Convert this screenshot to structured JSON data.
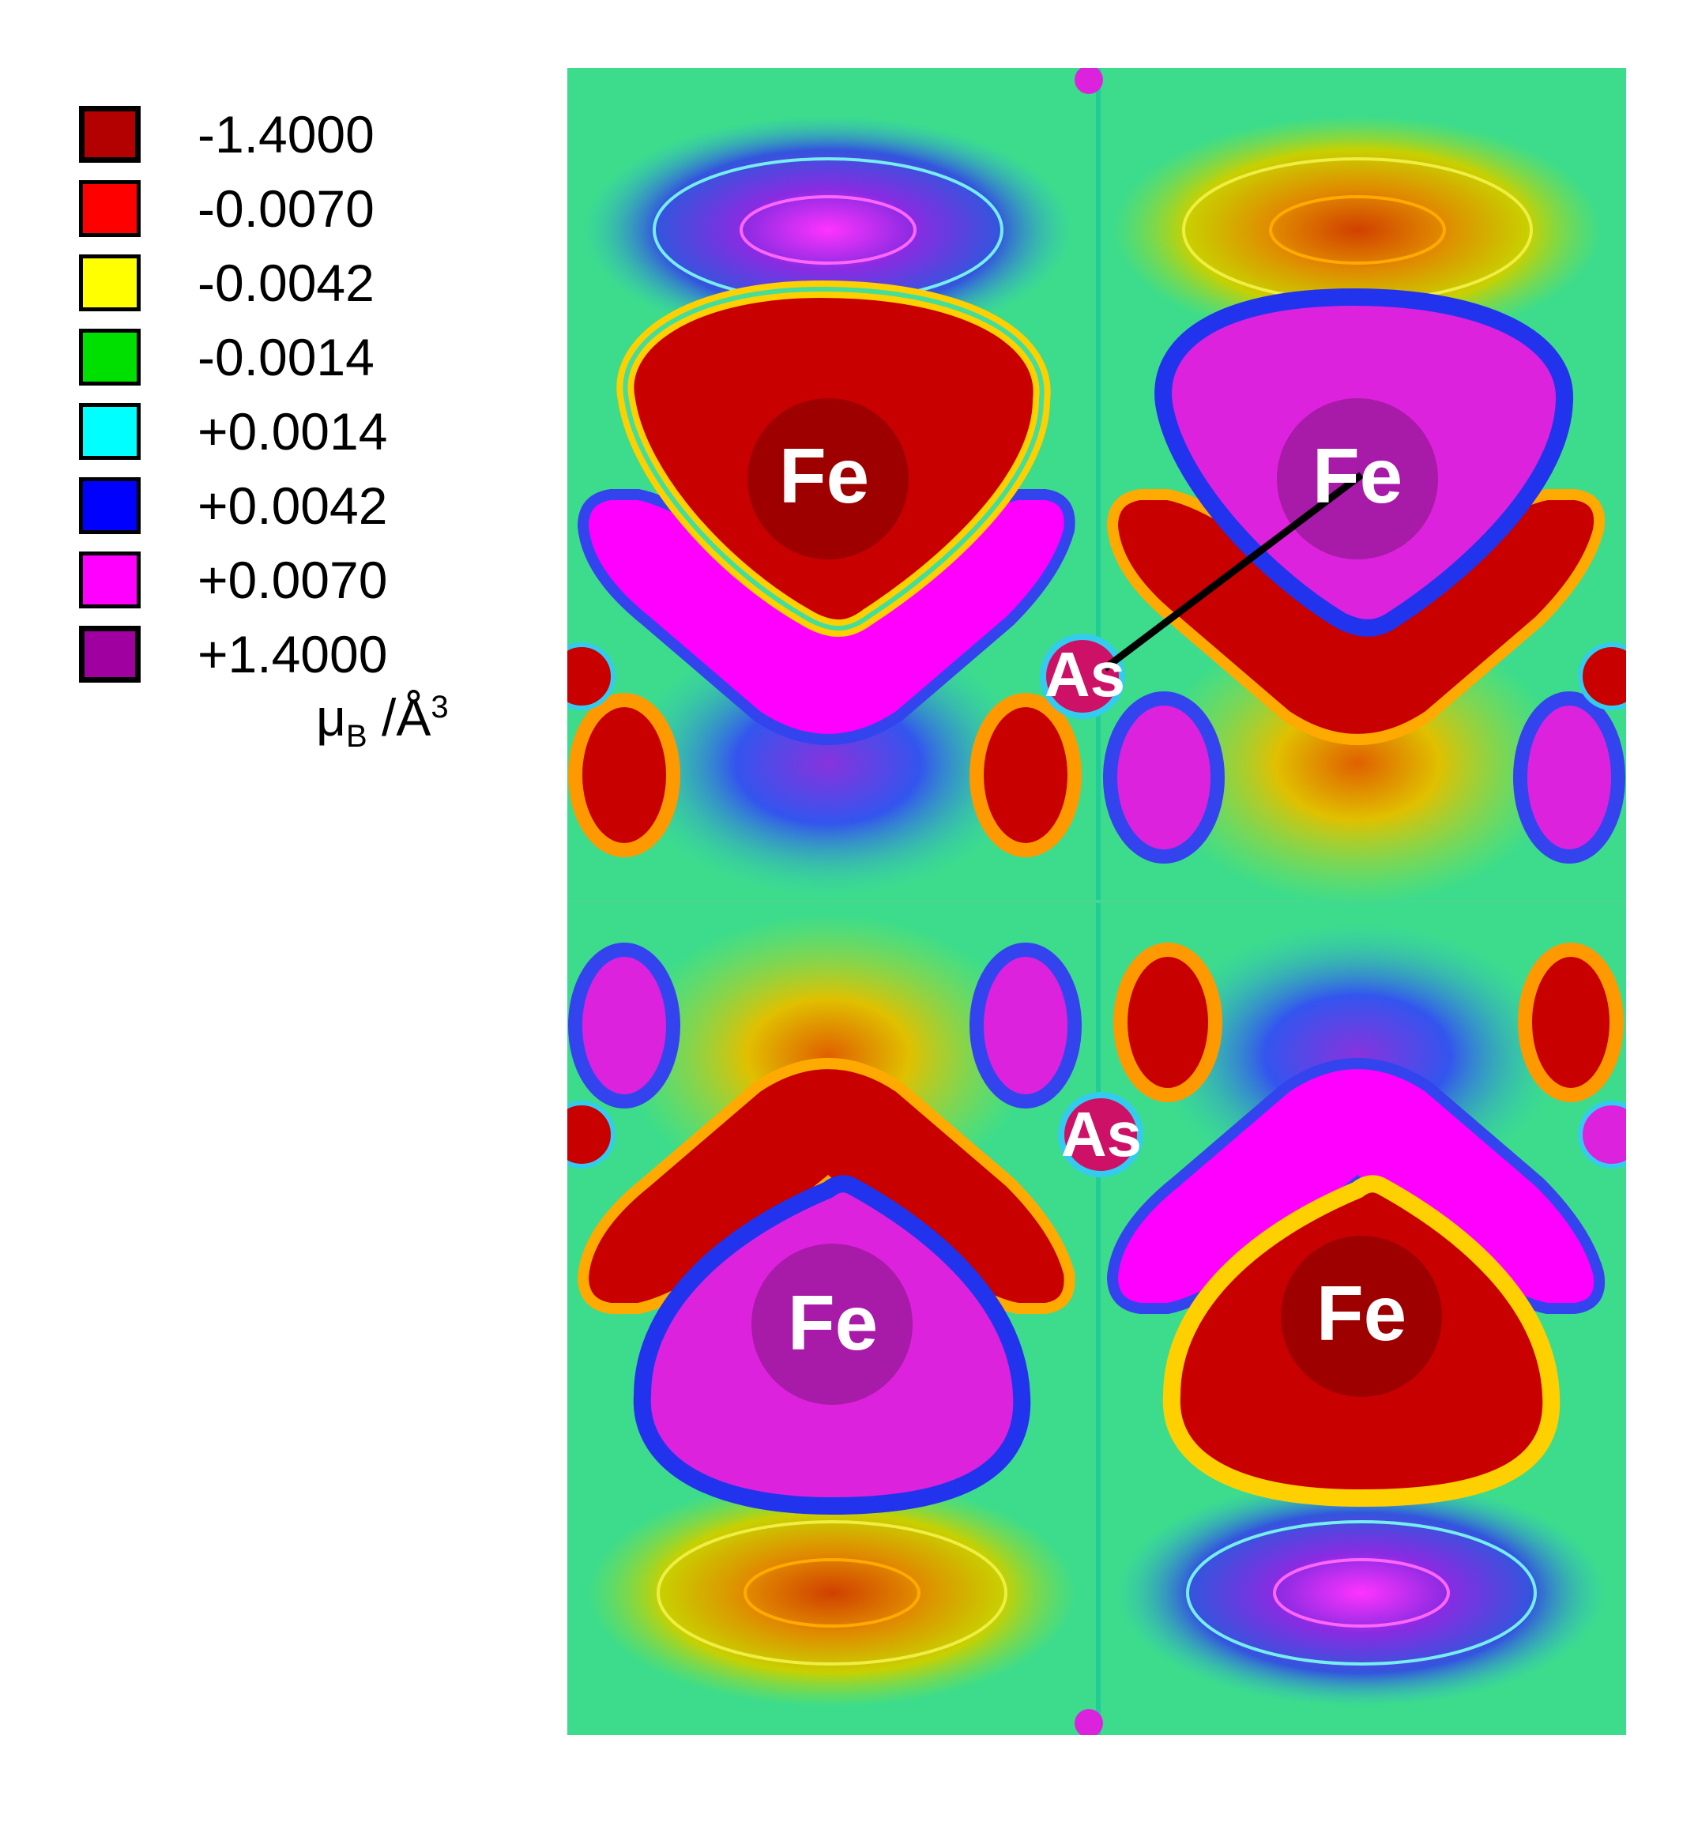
{
  "legend": {
    "entries": [
      {
        "value": "-1.4000",
        "color": "#b30000"
      },
      {
        "value": "-0.0070",
        "color": "#ff0000"
      },
      {
        "value": "-0.0042",
        "color": "#ffff00"
      },
      {
        "value": "-0.0014",
        "color": "#00e000"
      },
      {
        "value": "+0.0014",
        "color": "#00ffff"
      },
      {
        "value": "+0.0042",
        "color": "#0000ff"
      },
      {
        "value": "+0.0070",
        "color": "#ff00ff"
      },
      {
        "value": "+1.4000",
        "color": "#a000a0"
      }
    ],
    "unit_base": "μ",
    "unit_sub": "B",
    "unit_mid": " /Å",
    "unit_sup": "3"
  },
  "map": {
    "atoms": [
      {
        "label": "Fe",
        "type": "Fe",
        "sign": "negative",
        "quadrant": "top-left"
      },
      {
        "label": "Fe",
        "type": "Fe",
        "sign": "positive",
        "quadrant": "top-right"
      },
      {
        "label": "Fe",
        "type": "Fe",
        "sign": "positive",
        "quadrant": "bottom-left"
      },
      {
        "label": "Fe",
        "type": "Fe",
        "sign": "negative",
        "quadrant": "bottom-right"
      },
      {
        "label": "As",
        "type": "As",
        "quadrant": "center-upper"
      },
      {
        "label": "As",
        "type": "As",
        "quadrant": "center-lower"
      }
    ],
    "colors": {
      "background": "#3cdc8c",
      "strong_negative": "#c80000",
      "strong_positive": "#dd22dd",
      "atom_core_negative": "#9e0000",
      "atom_core_positive": "#a81aa8",
      "bond": "#000000"
    }
  }
}
